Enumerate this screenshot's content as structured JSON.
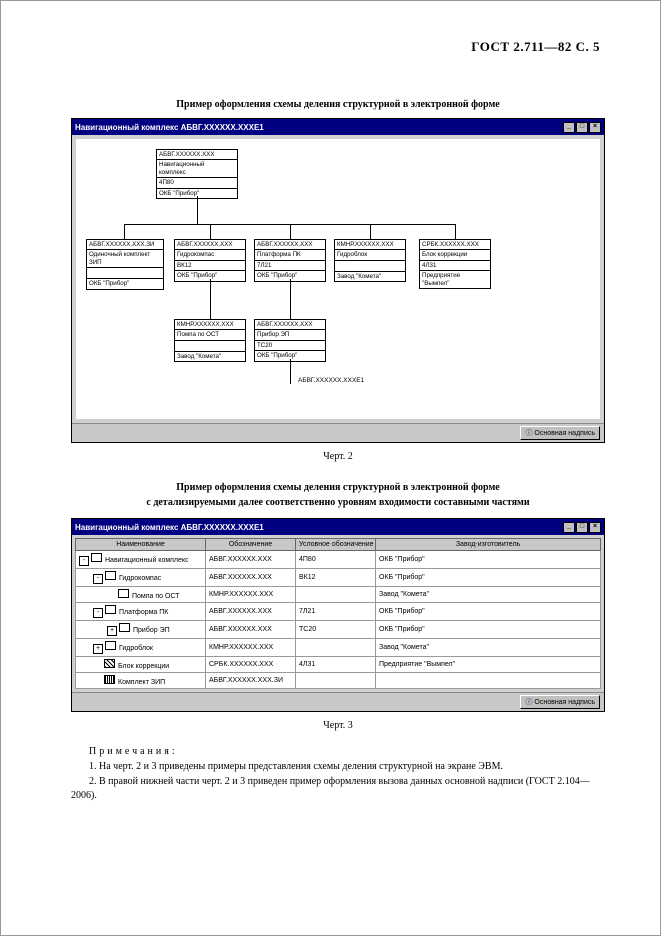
{
  "page_header": "ГОСТ  2.711—82 С. 5",
  "fig2": {
    "caption": "Пример оформления схемы деления структурной в электронной форме",
    "label": "Черт. 2",
    "window_title": "Навигационный комплекс АБВГ.ХХХХХХ.ХХХЕ1",
    "status_button": "Основная надпись",
    "free_label": "АБВГ.ХХХХХХ.ХХХЕ1",
    "nodes": {
      "root": {
        "code": "АБВГ.ХХХХХХ.ХХХ",
        "name": "Навигационный\nкомплекс",
        "usl": "4П80",
        "mfr": "ОКБ \"Прибор\""
      },
      "zip": {
        "code": "АБВГ.ХХХХХХ.ХХХ.ЗИ",
        "name": "Одиночный комплект\nЗИП",
        "usl": "",
        "mfr": "ОКБ \"Прибор\""
      },
      "gk": {
        "code": "АБВГ.ХХХХХХ.ХХХ",
        "name": "Гидрокомпас",
        "usl": "ВК12",
        "mfr": "ОКБ \"Прибор\""
      },
      "plat": {
        "code": "АБВГ.ХХХХХХ.ХХХ",
        "name": "Платформа ПК",
        "usl": "7Л21",
        "mfr": "ОКБ \"Прибор\""
      },
      "hydro": {
        "code": "КМНР.ХХХХХХ.ХХХ",
        "name": "Гидроблок",
        "usl": "",
        "mfr": "Завод \"Комета\""
      },
      "corr": {
        "code": "СРБК.ХХХХХХ.ХХХ",
        "name": "Блок коррекции",
        "usl": "4Л31",
        "mfr": "Предприятие\n\"Вымпел\""
      },
      "pump": {
        "code": "КМНР.ХХХХХХ.ХХХ",
        "name": "Помпа по ОСТ",
        "usl": "",
        "mfr": "Завод \"Комета\""
      },
      "ep": {
        "code": "АБВГ.ХХХХХХ.ХХХ",
        "name": "Прибор ЭП",
        "usl": "ТС20",
        "mfr": "ОКБ \"Прибор\""
      }
    }
  },
  "fig3": {
    "caption": "Пример оформления схемы деления структурной в электронной форме\nс детализируемыми далее соответственно уровням входимости составными частями",
    "label": "Черт. 3",
    "window_title": "Навигационный комплекс АБВГ.ХХХХХХ.ХХХЕ1",
    "status_button": "Основная надпись",
    "columns": [
      "Наименование",
      "Обозначение",
      "Условное обозначение",
      "Завод-изготовитель"
    ],
    "rows": [
      {
        "indent": 0,
        "toggle": "-",
        "icon": "plain",
        "name": "Навигационный комплекс",
        "des": "АБВГ.ХХХХХХ.ХХХ",
        "usl": "4П80",
        "mfr": "ОКБ \"Прибор\""
      },
      {
        "indent": 1,
        "toggle": "-",
        "icon": "plain",
        "name": "Гидрокомпас",
        "des": "АБВГ.ХХХХХХ.ХХХ",
        "usl": "ВК12",
        "mfr": "ОКБ \"Прибор\""
      },
      {
        "indent": 2,
        "toggle": "",
        "icon": "plain",
        "name": "Помпа по ОСТ",
        "des": "КМНР.ХХХХХХ.ХХХ",
        "usl": "",
        "mfr": "Завод \"Комета\""
      },
      {
        "indent": 1,
        "toggle": "-",
        "icon": "plain",
        "name": "Платформа ПК",
        "des": "АБВГ.ХХХХХХ.ХХХ",
        "usl": "7Л21",
        "mfr": "ОКБ \"Прибор\""
      },
      {
        "indent": 2,
        "toggle": "+",
        "icon": "plain",
        "name": "Прибор ЭП",
        "des": "АБВГ.ХХХХХХ.ХХХ",
        "usl": "ТС20",
        "mfr": "ОКБ \"Прибор\""
      },
      {
        "indent": 1,
        "toggle": "+",
        "icon": "plain",
        "name": "Гидроблок",
        "des": "КМНР.ХХХХХХ.ХХХ",
        "usl": "",
        "mfr": "Завод \"Комета\""
      },
      {
        "indent": 1,
        "toggle": "",
        "icon": "hatch",
        "name": "Блок коррекции",
        "des": "СРБК.ХХХХХХ.ХХХ",
        "usl": "4Л31",
        "mfr": "Предприятие \"Вымпел\""
      },
      {
        "indent": 1,
        "toggle": "",
        "icon": "dots",
        "name": "Комплект ЗИП",
        "des": "АБВГ.ХХХХХХ.ХХХ.ЗИ",
        "usl": "",
        "mfr": ""
      }
    ]
  },
  "notes": {
    "title": "Примечания:",
    "n1": "1. На черт. 2 и 3 приведены примеры представления схемы деления структурной на экране ЭВМ.",
    "n2": "2. В правой нижней части черт. 2 и 3 приведен пример оформления вызова данных основной надписи (ГОСТ 2.104—2006)."
  }
}
